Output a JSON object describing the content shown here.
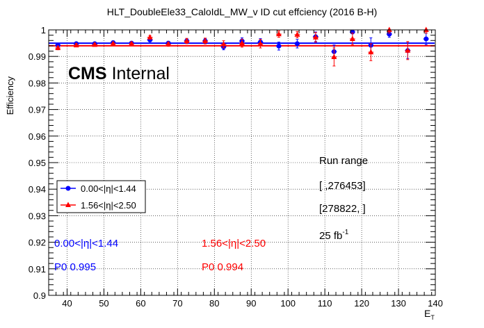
{
  "chart_data": {
    "type": "scatter",
    "title": "HLT_DoubleEle33_CaloIdL_MW_v ID cut effciency (2016 B-H)",
    "xlabel_main": "E",
    "xlabel_sub": "T",
    "ylabel": "Efficiency",
    "xlim": [
      35,
      140
    ],
    "ylim": [
      0.9,
      1.0
    ],
    "grid": true,
    "x_ticks": [
      40,
      50,
      60,
      70,
      80,
      90,
      100,
      110,
      120,
      130,
      140
    ],
    "y_ticks": [
      0.9,
      0.91,
      0.92,
      0.93,
      0.94,
      0.95,
      0.96,
      0.97,
      0.98,
      0.99,
      1.0
    ],
    "y_tick_labels": [
      "0.9",
      "0.91",
      "0.92",
      "0.93",
      "0.94",
      "0.95",
      "0.96",
      "0.97",
      "0.98",
      "0.99",
      "1"
    ],
    "cms_label_bold": "CMS",
    "cms_label_rest": "Internal",
    "legend_position": "left-middle",
    "series": [
      {
        "name": "0.00<|η|<1.44",
        "color": "#0000ff",
        "marker": "circle",
        "x": [
          37.5,
          42.5,
          47.5,
          52.5,
          57.5,
          62.5,
          67.5,
          72.5,
          77.5,
          82.5,
          87.5,
          92.5,
          97.5,
          102.5,
          107.5,
          112.5,
          117.5,
          122.5,
          127.5,
          132.5,
          137.5
        ],
        "y": [
          0.9942,
          0.9948,
          0.9948,
          0.9952,
          0.995,
          0.9962,
          0.995,
          0.9958,
          0.9958,
          0.9936,
          0.9958,
          0.9954,
          0.9939,
          0.9948,
          0.9974,
          0.9918,
          0.9992,
          0.9942,
          0.9984,
          0.9922,
          0.9966
        ],
        "err": [
          0.0006,
          0.0005,
          0.0005,
          0.0005,
          0.0005,
          0.0006,
          0.0007,
          0.0008,
          0.0009,
          0.0011,
          0.0012,
          0.0013,
          0.0015,
          0.0016,
          0.0018,
          0.0025,
          0.0006,
          0.0028,
          0.0012,
          0.003,
          0.0022
        ],
        "fit_P0": 0.995
      },
      {
        "name": "1.56<|η|<2.50",
        "color": "#ff0000",
        "marker": "triangle",
        "x": [
          37.5,
          42.5,
          47.5,
          52.5,
          57.5,
          62.5,
          67.5,
          72.5,
          77.5,
          82.5,
          87.5,
          92.5,
          97.5,
          102.5,
          107.5,
          112.5,
          117.5,
          122.5,
          127.5,
          132.5,
          137.5
        ],
        "y": [
          0.9932,
          0.9942,
          0.9944,
          0.9948,
          0.9948,
          0.9972,
          0.9946,
          0.9958,
          0.9958,
          0.9946,
          0.995,
          0.9948,
          0.9984,
          0.9982,
          0.9972,
          0.9898,
          0.9966,
          0.9916,
          1.0,
          0.9922,
          1.0
        ],
        "err": [
          0.0007,
          0.0006,
          0.0006,
          0.0006,
          0.0006,
          0.0007,
          0.0008,
          0.001,
          0.0011,
          0.0013,
          0.0015,
          0.0016,
          0.0012,
          0.0012,
          0.0018,
          0.0034,
          0.0022,
          0.0032,
          0.0012,
          0.0034,
          0.0012
        ],
        "fit_P0": 0.994
      }
    ],
    "annotations": {
      "run_range_title": "Run range",
      "run_range_1": "[ ,276453]",
      "run_range_2": "[278822, ]",
      "lumi_value": "25 fb",
      "lumi_exp": "-1",
      "fit_label_blue_eta": "0.00<|η|<1.44",
      "fit_label_blue_p0": "P0  0.995",
      "fit_label_red_eta": "1.56<|η|<2.50",
      "fit_label_red_p0": "P0  0.994"
    }
  }
}
